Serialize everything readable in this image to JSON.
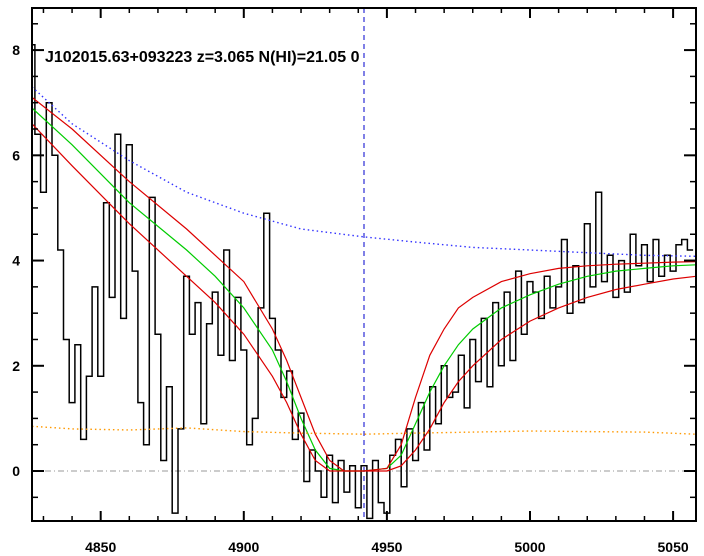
{
  "chart_data": {
    "type": "line",
    "title": "J102015.63+093223 z=3.065 N(HI)=21.05 0",
    "xlabel": "",
    "ylabel": "",
    "xlim": [
      4826,
      5058
    ],
    "ylim": [
      -0.95,
      8.8
    ],
    "x_ticks": [
      4850,
      4900,
      4950,
      5000,
      5050
    ],
    "x_tick_labels": [
      "4850",
      "4900",
      "4950",
      "5000",
      "5050"
    ],
    "y_ticks": [
      0,
      2,
      4,
      6,
      8
    ],
    "y_tick_labels": [
      "0",
      "2",
      "4",
      "6",
      "8"
    ],
    "grid": false,
    "legend": "none",
    "reference_lines": {
      "zero_level": 0,
      "line_center_x": 4942
    },
    "colors": {
      "flux": "#000000",
      "model": "#00cc00",
      "model_bounds": "#dd0000",
      "continuum": "#3333ff",
      "error": "#ff9900",
      "line_center": "#0000cc",
      "zero_line": "#999999"
    },
    "series": [
      {
        "style": "step",
        "color": "#000000",
        "x": [
          4826,
          4828,
          4830,
          4832,
          4834,
          4836,
          4838,
          4840,
          4842,
          4844,
          4846,
          4848,
          4850,
          4852,
          4854,
          4856,
          4858,
          4860,
          4862,
          4864,
          4866,
          4868,
          4870,
          4872,
          4874,
          4876,
          4878,
          4880,
          4882,
          4884,
          4886,
          4888,
          4890,
          4892,
          4894,
          4896,
          4898,
          4900,
          4902,
          4904,
          4906,
          4908,
          4910,
          4912,
          4914,
          4916,
          4918,
          4920,
          4922,
          4924,
          4926,
          4928,
          4930,
          4932,
          4934,
          4936,
          4938,
          4940,
          4942,
          4944,
          4946,
          4948,
          4950,
          4952,
          4954,
          4956,
          4958,
          4960,
          4962,
          4964,
          4966,
          4968,
          4970,
          4972,
          4974,
          4976,
          4978,
          4980,
          4982,
          4984,
          4986,
          4988,
          4990,
          4992,
          4994,
          4996,
          4998,
          5000,
          5002,
          5004,
          5006,
          5008,
          5010,
          5012,
          5014,
          5016,
          5018,
          5020,
          5022,
          5024,
          5026,
          5028,
          5030,
          5032,
          5034,
          5036,
          5038,
          5040,
          5042,
          5044,
          5046,
          5048,
          5050,
          5052,
          5054,
          5056
        ],
        "y": [
          8.1,
          6.4,
          5.3,
          7.0,
          6.0,
          4.2,
          2.5,
          1.3,
          2.4,
          0.6,
          1.8,
          3.5,
          1.8,
          5.1,
          3.3,
          6.4,
          2.9,
          6.2,
          3.8,
          1.3,
          0.5,
          5.2,
          2.6,
          0.2,
          1.6,
          -0.8,
          0.8,
          3.7,
          2.6,
          3.2,
          0.9,
          2.8,
          3.4,
          2.2,
          4.2,
          2.1,
          3.3,
          2.3,
          0.5,
          1.0,
          3.1,
          4.9,
          2.9,
          2.3,
          1.4,
          1.9,
          0.6,
          1.1,
          -0.2,
          0.4,
          0.0,
          -0.5,
          0.3,
          -0.6,
          0.2,
          -0.4,
          0.1,
          -0.7,
          0.1,
          -0.9,
          0.2,
          -0.6,
          -0.8,
          0.3,
          0.6,
          -0.3,
          0.8,
          0.2,
          1.3,
          0.4,
          1.6,
          0.9,
          2.0,
          1.4,
          1.5,
          2.2,
          1.2,
          2.5,
          1.7,
          2.9,
          1.6,
          3.2,
          2.0,
          3.4,
          2.1,
          3.8,
          2.6,
          3.6,
          3.4,
          2.9,
          3.7,
          3.1,
          3.5,
          4.4,
          3.0,
          3.9,
          3.2,
          4.7,
          3.5,
          5.3,
          3.6,
          4.1,
          3.3,
          4.0,
          3.4,
          4.5,
          3.9,
          4.3,
          3.6,
          4.4,
          3.7,
          4.1,
          3.8,
          4.3,
          4.4,
          4.2
        ]
      },
      {
        "style": "line",
        "color": "#00cc00",
        "x": [
          4826,
          4840,
          4860,
          4880,
          4890,
          4900,
          4910,
          4915,
          4920,
          4925,
          4930,
          4935,
          4942,
          4950,
          4955,
          4960,
          4965,
          4970,
          4975,
          4980,
          4990,
          5000,
          5010,
          5020,
          5030,
          5040,
          5050,
          5058
        ],
        "y": [
          6.9,
          6.2,
          5.1,
          4.2,
          3.7,
          3.1,
          2.3,
          1.7,
          1.0,
          0.4,
          0.05,
          0.0,
          0.0,
          0.05,
          0.3,
          0.9,
          1.5,
          2.0,
          2.4,
          2.7,
          3.1,
          3.35,
          3.55,
          3.7,
          3.8,
          3.85,
          3.9,
          3.92
        ]
      },
      {
        "style": "line",
        "color": "#dd0000",
        "x": [
          4826,
          4840,
          4860,
          4880,
          4890,
          4900,
          4910,
          4915,
          4920,
          4925,
          4930,
          4935,
          4942,
          4950,
          4955,
          4960,
          4965,
          4970,
          4975,
          4980,
          4990,
          5000,
          5010,
          5020,
          5030,
          5040,
          5050,
          5058
        ],
        "y": [
          7.1,
          6.5,
          5.5,
          4.6,
          4.1,
          3.6,
          2.7,
          2.1,
          1.4,
          0.7,
          0.2,
          0.0,
          0.0,
          0.05,
          0.5,
          1.4,
          2.2,
          2.7,
          3.1,
          3.3,
          3.6,
          3.75,
          3.85,
          3.9,
          3.93,
          3.95,
          3.97,
          3.98
        ]
      },
      {
        "style": "line",
        "color": "#dd0000",
        "x": [
          4826,
          4840,
          4860,
          4880,
          4890,
          4900,
          4910,
          4915,
          4920,
          4925,
          4930,
          4935,
          4942,
          4950,
          4955,
          4960,
          4965,
          4970,
          4975,
          4980,
          4990,
          5000,
          5010,
          5020,
          5030,
          5040,
          5050,
          5058
        ],
        "y": [
          6.6,
          5.8,
          4.7,
          3.7,
          3.2,
          2.6,
          1.8,
          1.3,
          0.7,
          0.2,
          0.0,
          0.0,
          0.0,
          0.0,
          0.1,
          0.4,
          0.8,
          1.3,
          1.7,
          2.0,
          2.5,
          2.85,
          3.1,
          3.3,
          3.45,
          3.55,
          3.65,
          3.7
        ]
      },
      {
        "style": "dotted",
        "color": "#3333ff",
        "x": [
          4826,
          4840,
          4860,
          4880,
          4900,
          4920,
          4942,
          4960,
          4980,
          5000,
          5020,
          5040,
          5058
        ],
        "y": [
          7.3,
          6.6,
          5.9,
          5.3,
          4.9,
          4.6,
          4.45,
          4.35,
          4.25,
          4.2,
          4.15,
          4.1,
          4.08
        ]
      },
      {
        "style": "dotted",
        "color": "#ff9900",
        "x": [
          4826,
          4840,
          4860,
          4880,
          4900,
          4920,
          4942,
          4960,
          4980,
          5000,
          5020,
          5040,
          5058
        ],
        "y": [
          0.85,
          0.8,
          0.78,
          0.82,
          0.75,
          0.72,
          0.7,
          0.72,
          0.74,
          0.76,
          0.75,
          0.74,
          0.7
        ]
      }
    ]
  }
}
